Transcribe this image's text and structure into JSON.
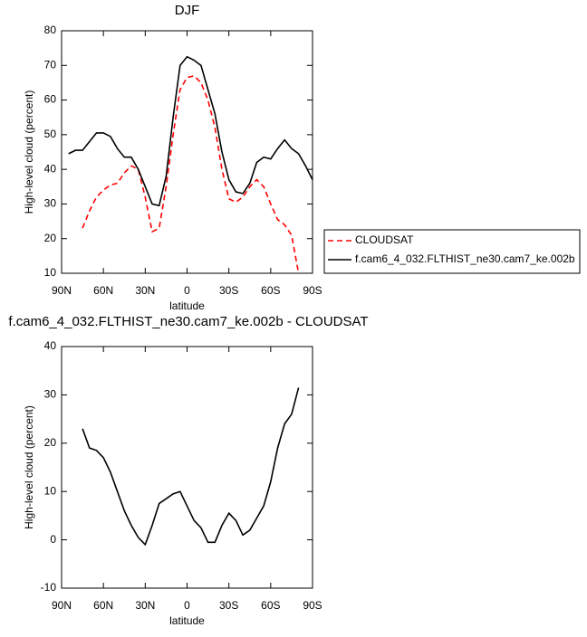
{
  "chart_data": [
    {
      "type": "line",
      "title": "DJF",
      "xlabel": "latitude",
      "ylabel": "High-level cloud (percent)",
      "x": [
        85,
        80,
        75,
        70,
        65,
        60,
        55,
        50,
        45,
        40,
        35,
        30,
        25,
        20,
        15,
        10,
        5,
        0,
        -5,
        -10,
        -15,
        -20,
        -25,
        -30,
        -35,
        -40,
        -45,
        -50,
        -55,
        -60,
        -65,
        -70,
        -75,
        -80,
        -85,
        -90
      ],
      "series": [
        {
          "name": "CLOUDSAT",
          "color": "#ff0000",
          "line_style": "dashed",
          "values": [
            null,
            null,
            23,
            28,
            32,
            34,
            35.5,
            36,
            39,
            41,
            40,
            32,
            22,
            23,
            35,
            50,
            63,
            66.5,
            67,
            65,
            60,
            52,
            40,
            31.5,
            30.5,
            32,
            35,
            37,
            35,
            30,
            25.5,
            24,
            21,
            10,
            null,
            null
          ]
        },
        {
          "name": "f.cam6_4_032.FLTHIST_ne30.cam7_ke.002b",
          "color": "#000000",
          "line_style": "solid",
          "values": [
            44.5,
            45.5,
            45.5,
            48,
            50.5,
            50.5,
            49.5,
            46,
            43.5,
            43.5,
            40,
            35,
            30,
            29.5,
            38,
            55,
            70,
            72.5,
            71.5,
            70,
            63,
            56,
            45,
            37,
            33.5,
            33,
            36,
            42,
            43.5,
            43,
            46,
            48.5,
            46,
            44.5,
            41,
            37
          ]
        }
      ],
      "xlim": [
        90,
        -90
      ],
      "xticks": [
        {
          "value": 90,
          "label": "90N"
        },
        {
          "value": 60,
          "label": "60N"
        },
        {
          "value": 30,
          "label": "30N"
        },
        0,
        {
          "value": -30,
          "label": "30S"
        },
        {
          "value": -60,
          "label": "60S"
        },
        {
          "value": -90,
          "label": "90S"
        }
      ],
      "ylim": [
        10,
        80
      ],
      "yticks": [
        10,
        20,
        30,
        40,
        50,
        60,
        70,
        80
      ],
      "legend": "right"
    },
    {
      "type": "line",
      "title": "f.cam6_4_032.FLTHIST_ne30.cam7_ke.002b - CLOUDSAT",
      "xlabel": "latitude",
      "ylabel": "High-level cloud (percent)",
      "x": [
        75,
        70,
        65,
        60,
        55,
        50,
        45,
        40,
        35,
        30,
        25,
        20,
        15,
        10,
        5,
        0,
        -5,
        -10,
        -15,
        -20,
        -25,
        -30,
        -35,
        -40,
        -45,
        -50,
        -55,
        -60,
        -65,
        -70,
        -75,
        -80
      ],
      "series": [
        {
          "color": "#000000",
          "line_style": "solid",
          "values": [
            23,
            19,
            18.5,
            17,
            14,
            10,
            6,
            3,
            0.5,
            -1,
            3,
            7.5,
            8.5,
            9.5,
            10,
            7,
            4,
            2.5,
            -0.5,
            -0.5,
            3,
            5.5,
            4,
            1,
            2,
            4.5,
            7,
            12,
            19,
            24,
            26,
            31.5
          ]
        }
      ],
      "xlim": [
        90,
        -90
      ],
      "xticks": [
        {
          "value": 90,
          "label": "90N"
        },
        {
          "value": 60,
          "label": "60N"
        },
        {
          "value": 30,
          "label": "30N"
        },
        0,
        {
          "value": -30,
          "label": "30S"
        },
        {
          "value": -60,
          "label": "60S"
        },
        {
          "value": -90,
          "label": "90S"
        }
      ],
      "ylim": [
        -10,
        40
      ],
      "yticks": [
        -10,
        0,
        10,
        20,
        30,
        40
      ]
    }
  ]
}
